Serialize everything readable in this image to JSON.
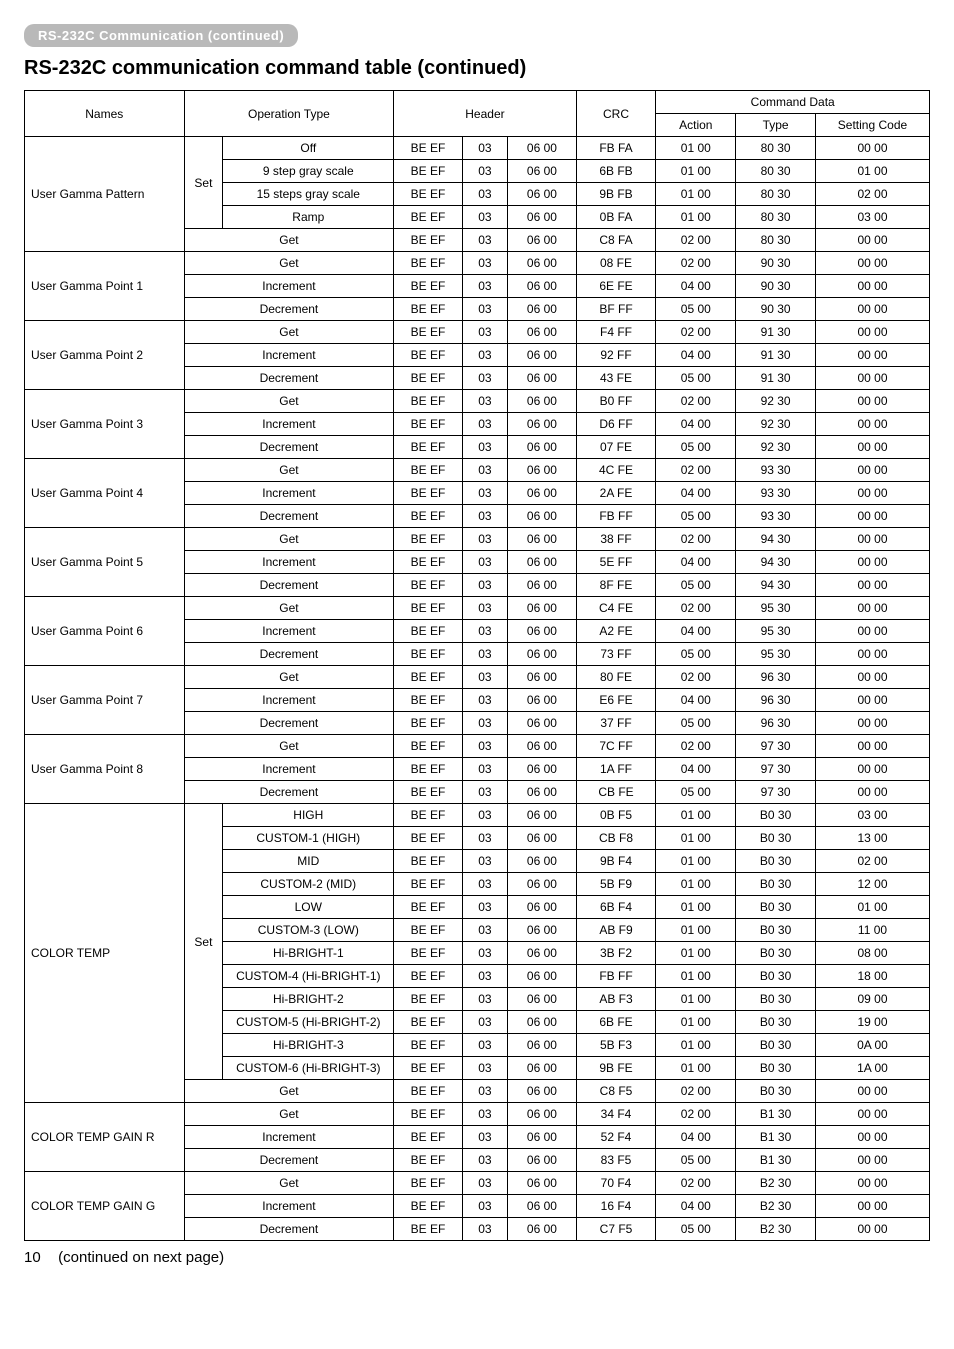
{
  "pill_label": "RS-232C Communication (continued)",
  "section_title": "RS-232C communication command table (continued)",
  "header": {
    "names": "Names",
    "operation_type": "Operation Type",
    "header": "Header",
    "crc": "CRC",
    "command_data": "Command Data",
    "action": "Action",
    "type": "Type",
    "setting_code": "Setting Code"
  },
  "groups": [
    {
      "name": "User Gamma Pattern",
      "set_label": "Set",
      "set_rows": [
        {
          "op": "Off",
          "h1": "BE  EF",
          "h2": "03",
          "h3": "06  00",
          "crc": "FB  FA",
          "act": "01  00",
          "type": "80  30",
          "setc": "00  00"
        },
        {
          "op": "9 step gray scale",
          "h1": "BE  EF",
          "h2": "03",
          "h3": "06  00",
          "crc": "6B  FB",
          "act": "01  00",
          "type": "80  30",
          "setc": "01  00"
        },
        {
          "op": "15 steps gray scale",
          "h1": "BE  EF",
          "h2": "03",
          "h3": "06  00",
          "crc": "9B  FB",
          "act": "01  00",
          "type": "80  30",
          "setc": "02  00"
        },
        {
          "op": "Ramp",
          "h1": "BE  EF",
          "h2": "03",
          "h3": "06  00",
          "crc": "0B  FA",
          "act": "01  00",
          "type": "80  30",
          "setc": "03  00"
        }
      ],
      "rows": [
        {
          "op": "Get",
          "h1": "BE  EF",
          "h2": "03",
          "h3": "06  00",
          "crc": "C8  FA",
          "act": "02  00",
          "type": "80  30",
          "setc": "00  00"
        }
      ]
    },
    {
      "name": "User Gamma Point 1",
      "rows": [
        {
          "op": "Get",
          "h1": "BE  EF",
          "h2": "03",
          "h3": "06  00",
          "crc": "08  FE",
          "act": "02  00",
          "type": "90  30",
          "setc": "00  00"
        },
        {
          "op": "Increment",
          "h1": "BE  EF",
          "h2": "03",
          "h3": "06  00",
          "crc": "6E  FE",
          "act": "04  00",
          "type": "90  30",
          "setc": "00  00"
        },
        {
          "op": "Decrement",
          "h1": "BE  EF",
          "h2": "03",
          "h3": "06  00",
          "crc": "BF  FF",
          "act": "05  00",
          "type": "90  30",
          "setc": "00  00"
        }
      ]
    },
    {
      "name": "User Gamma Point 2",
      "rows": [
        {
          "op": "Get",
          "h1": "BE  EF",
          "h2": "03",
          "h3": "06  00",
          "crc": "F4  FF",
          "act": "02  00",
          "type": "91  30",
          "setc": "00  00"
        },
        {
          "op": "Increment",
          "h1": "BE  EF",
          "h2": "03",
          "h3": "06  00",
          "crc": "92  FF",
          "act": "04  00",
          "type": "91  30",
          "setc": "00  00"
        },
        {
          "op": "Decrement",
          "h1": "BE  EF",
          "h2": "03",
          "h3": "06  00",
          "crc": "43  FE",
          "act": "05  00",
          "type": "91  30",
          "setc": "00  00"
        }
      ]
    },
    {
      "name": "User Gamma Point 3",
      "rows": [
        {
          "op": "Get",
          "h1": "BE  EF",
          "h2": "03",
          "h3": "06  00",
          "crc": "B0  FF",
          "act": "02  00",
          "type": "92  30",
          "setc": "00  00"
        },
        {
          "op": "Increment",
          "h1": "BE  EF",
          "h2": "03",
          "h3": "06  00",
          "crc": "D6  FF",
          "act": "04  00",
          "type": "92  30",
          "setc": "00  00"
        },
        {
          "op": "Decrement",
          "h1": "BE  EF",
          "h2": "03",
          "h3": "06  00",
          "crc": "07  FE",
          "act": "05  00",
          "type": "92  30",
          "setc": "00  00"
        }
      ]
    },
    {
      "name": "User Gamma Point 4",
      "rows": [
        {
          "op": "Get",
          "h1": "BE  EF",
          "h2": "03",
          "h3": "06  00",
          "crc": "4C  FE",
          "act": "02  00",
          "type": "93  30",
          "setc": "00  00"
        },
        {
          "op": "Increment",
          "h1": "BE  EF",
          "h2": "03",
          "h3": "06  00",
          "crc": "2A  FE",
          "act": "04  00",
          "type": "93  30",
          "setc": "00  00"
        },
        {
          "op": "Decrement",
          "h1": "BE  EF",
          "h2": "03",
          "h3": "06  00",
          "crc": "FB  FF",
          "act": "05  00",
          "type": "93  30",
          "setc": "00  00"
        }
      ]
    },
    {
      "name": "User Gamma Point 5",
      "rows": [
        {
          "op": "Get",
          "h1": "BE  EF",
          "h2": "03",
          "h3": "06  00",
          "crc": "38  FF",
          "act": "02  00",
          "type": "94  30",
          "setc": "00  00"
        },
        {
          "op": "Increment",
          "h1": "BE  EF",
          "h2": "03",
          "h3": "06  00",
          "crc": "5E  FF",
          "act": "04  00",
          "type": "94  30",
          "setc": "00  00"
        },
        {
          "op": "Decrement",
          "h1": "BE  EF",
          "h2": "03",
          "h3": "06  00",
          "crc": "8F  FE",
          "act": "05  00",
          "type": "94  30",
          "setc": "00  00"
        }
      ]
    },
    {
      "name": "User Gamma Point 6",
      "rows": [
        {
          "op": "Get",
          "h1": "BE  EF",
          "h2": "03",
          "h3": "06  00",
          "crc": "C4  FE",
          "act": "02  00",
          "type": "95  30",
          "setc": "00  00"
        },
        {
          "op": "Increment",
          "h1": "BE  EF",
          "h2": "03",
          "h3": "06  00",
          "crc": "A2  FE",
          "act": "04  00",
          "type": "95  30",
          "setc": "00  00"
        },
        {
          "op": "Decrement",
          "h1": "BE  EF",
          "h2": "03",
          "h3": "06  00",
          "crc": "73  FF",
          "act": "05  00",
          "type": "95  30",
          "setc": "00  00"
        }
      ]
    },
    {
      "name": "User Gamma Point 7",
      "rows": [
        {
          "op": "Get",
          "h1": "BE  EF",
          "h2": "03",
          "h3": "06  00",
          "crc": "80  FE",
          "act": "02  00",
          "type": "96  30",
          "setc": "00  00"
        },
        {
          "op": "Increment",
          "h1": "BE  EF",
          "h2": "03",
          "h3": "06  00",
          "crc": "E6  FE",
          "act": "04  00",
          "type": "96  30",
          "setc": "00  00"
        },
        {
          "op": "Decrement",
          "h1": "BE  EF",
          "h2": "03",
          "h3": "06  00",
          "crc": "37  FF",
          "act": "05  00",
          "type": "96  30",
          "setc": "00  00"
        }
      ]
    },
    {
      "name": "User Gamma Point 8",
      "rows": [
        {
          "op": "Get",
          "h1": "BE  EF",
          "h2": "03",
          "h3": "06  00",
          "crc": "7C  FF",
          "act": "02  00",
          "type": "97  30",
          "setc": "00  00"
        },
        {
          "op": "Increment",
          "h1": "BE  EF",
          "h2": "03",
          "h3": "06  00",
          "crc": "1A  FF",
          "act": "04  00",
          "type": "97  30",
          "setc": "00  00"
        },
        {
          "op": "Decrement",
          "h1": "BE  EF",
          "h2": "03",
          "h3": "06  00",
          "crc": "CB  FE",
          "act": "05  00",
          "type": "97  30",
          "setc": "00  00"
        }
      ]
    },
    {
      "name": "COLOR TEMP",
      "set_label": "Set",
      "set_rows": [
        {
          "op": "HIGH",
          "h1": "BE  EF",
          "h2": "03",
          "h3": "06  00",
          "crc": "0B  F5",
          "act": "01  00",
          "type": "B0  30",
          "setc": "03  00"
        },
        {
          "op": "CUSTOM-1 (HIGH)",
          "h1": "BE  EF",
          "h2": "03",
          "h3": "06  00",
          "crc": "CB  F8",
          "act": "01  00",
          "type": "B0  30",
          "setc": "13  00"
        },
        {
          "op": "MID",
          "h1": "BE  EF",
          "h2": "03",
          "h3": "06  00",
          "crc": "9B  F4",
          "act": "01  00",
          "type": "B0  30",
          "setc": "02  00"
        },
        {
          "op": "CUSTOM-2 (MID)",
          "h1": "BE  EF",
          "h2": "03",
          "h3": "06  00",
          "crc": "5B  F9",
          "act": "01  00",
          "type": "B0  30",
          "setc": "12  00"
        },
        {
          "op": "LOW",
          "h1": "BE  EF",
          "h2": "03",
          "h3": "06  00",
          "crc": "6B  F4",
          "act": "01  00",
          "type": "B0  30",
          "setc": "01  00"
        },
        {
          "op": "CUSTOM-3 (LOW)",
          "h1": "BE  EF",
          "h2": "03",
          "h3": "06  00",
          "crc": "AB  F9",
          "act": "01  00",
          "type": "B0  30",
          "setc": "11  00"
        },
        {
          "op": "Hi-BRIGHT-1",
          "h1": "BE  EF",
          "h2": "03",
          "h3": "06  00",
          "crc": "3B  F2",
          "act": "01  00",
          "type": "B0  30",
          "setc": "08  00"
        },
        {
          "op": "CUSTOM-4 (Hi-BRIGHT-1)",
          "h1": "BE  EF",
          "h2": "03",
          "h3": "06  00",
          "crc": "FB  FF",
          "act": "01  00",
          "type": "B0  30",
          "setc": "18  00"
        },
        {
          "op": "Hi-BRIGHT-2",
          "h1": "BE  EF",
          "h2": "03",
          "h3": "06  00",
          "crc": "AB  F3",
          "act": "01  00",
          "type": "B0  30",
          "setc": "09  00"
        },
        {
          "op": "CUSTOM-5 (Hi-BRIGHT-2)",
          "h1": "BE  EF",
          "h2": "03",
          "h3": "06  00",
          "crc": "6B  FE",
          "act": "01  00",
          "type": "B0  30",
          "setc": "19  00"
        },
        {
          "op": "Hi-BRIGHT-3",
          "h1": "BE  EF",
          "h2": "03",
          "h3": "06  00",
          "crc": "5B  F3",
          "act": "01  00",
          "type": "B0  30",
          "setc": "0A  00"
        },
        {
          "op": "CUSTOM-6 (Hi-BRIGHT-3)",
          "h1": "BE  EF",
          "h2": "03",
          "h3": "06  00",
          "crc": "9B  FE",
          "act": "01  00",
          "type": "B0  30",
          "setc": "1A  00"
        }
      ],
      "rows": [
        {
          "op": "Get",
          "h1": "BE  EF",
          "h2": "03",
          "h3": "06  00",
          "crc": "C8  F5",
          "act": "02  00",
          "type": "B0  30",
          "setc": "00  00"
        }
      ]
    },
    {
      "name": "COLOR TEMP GAIN R",
      "rows": [
        {
          "op": "Get",
          "h1": "BE  EF",
          "h2": "03",
          "h3": "06  00",
          "crc": "34  F4",
          "act": "02  00",
          "type": "B1  30",
          "setc": "00  00"
        },
        {
          "op": "Increment",
          "h1": "BE  EF",
          "h2": "03",
          "h3": "06  00",
          "crc": "52   F4",
          "act": "04  00",
          "type": "B1  30",
          "setc": "00  00"
        },
        {
          "op": "Decrement",
          "h1": "BE  EF",
          "h2": "03",
          "h3": "06  00",
          "crc": "83   F5",
          "act": "05  00",
          "type": "B1  30",
          "setc": "00  00"
        }
      ]
    },
    {
      "name": "COLOR TEMP GAIN G",
      "rows": [
        {
          "op": "Get",
          "h1": "BE  EF",
          "h2": "03",
          "h3": "06  00",
          "crc": "70   F4",
          "act": "02  00",
          "type": "B2  30",
          "setc": "00  00"
        },
        {
          "op": "Increment",
          "h1": "BE  EF",
          "h2": "03",
          "h3": "06  00",
          "crc": "16   F4",
          "act": "04  00",
          "type": "B2  30",
          "setc": "00  00"
        },
        {
          "op": "Decrement",
          "h1": "BE  EF",
          "h2": "03",
          "h3": "06  00",
          "crc": "C7   F5",
          "act": "05  00",
          "type": "B2  30",
          "setc": "00  00"
        }
      ]
    }
  ],
  "page_number": "10",
  "continued_text": "(continued on next page)"
}
